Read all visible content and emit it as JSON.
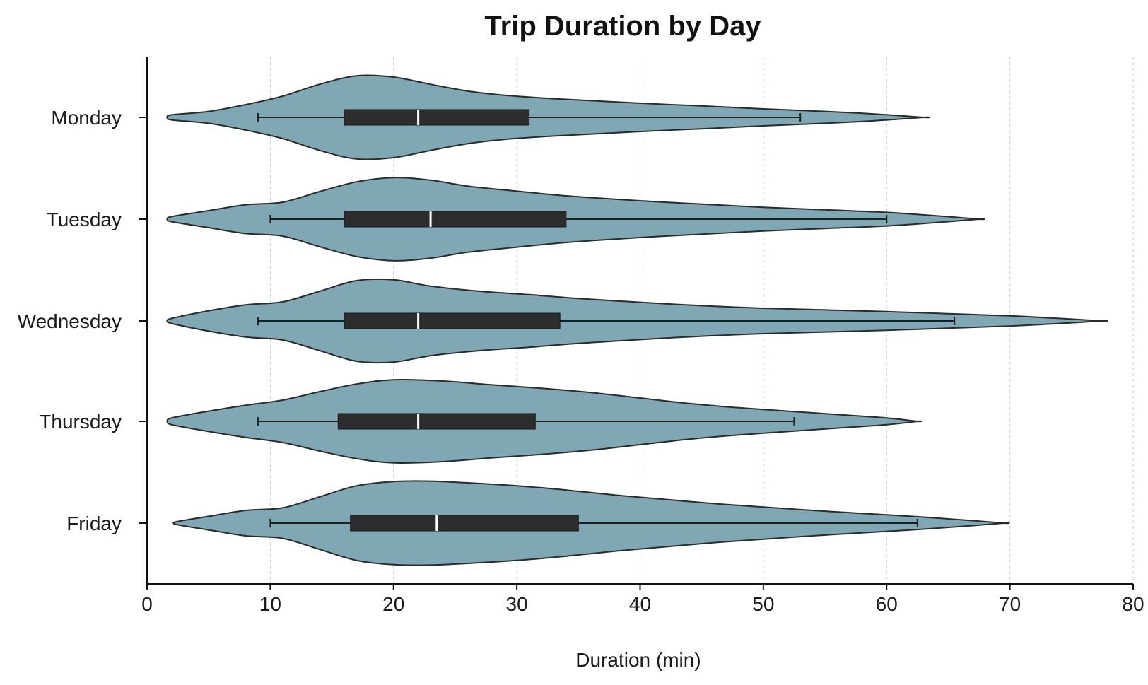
{
  "chart_data": {
    "type": "violin",
    "orientation": "horizontal",
    "title": "Trip Duration by Day",
    "xlabel": "Duration (min)",
    "ylabel": "",
    "xlim": [
      0,
      80
    ],
    "xticks": [
      0,
      10,
      20,
      30,
      40,
      50,
      60,
      70,
      80
    ],
    "grid": "vertical-dashed",
    "colors": {
      "violin_fill": "#7fa8b4",
      "violin_edge": "#2b2b2b",
      "box": "#2d2d2d",
      "median": "#ffffff"
    },
    "categories": [
      "Monday",
      "Tuesday",
      "Wednesday",
      "Thursday",
      "Friday"
    ],
    "series": [
      {
        "category": "Monday",
        "whisker_low": 9,
        "q1": 16,
        "median": 22,
        "q3": 31,
        "whisker_high": 53,
        "range": [
          2,
          63
        ],
        "density": [
          [
            2,
            0.06
          ],
          [
            5,
            0.14
          ],
          [
            8,
            0.3
          ],
          [
            11,
            0.5
          ],
          [
            14,
            0.78
          ],
          [
            17,
            0.98
          ],
          [
            20,
            0.95
          ],
          [
            23,
            0.78
          ],
          [
            26,
            0.62
          ],
          [
            29,
            0.52
          ],
          [
            33,
            0.44
          ],
          [
            37,
            0.38
          ],
          [
            41,
            0.32
          ],
          [
            45,
            0.27
          ],
          [
            50,
            0.2
          ],
          [
            55,
            0.14
          ],
          [
            59,
            0.08
          ],
          [
            63,
            0.0
          ]
        ]
      },
      {
        "category": "Tuesday",
        "whisker_low": 10,
        "q1": 16,
        "median": 23,
        "q3": 34,
        "whisker_high": 60,
        "range": [
          2,
          67.5
        ],
        "density": [
          [
            2,
            0.06
          ],
          [
            5,
            0.2
          ],
          [
            8,
            0.34
          ],
          [
            11,
            0.4
          ],
          [
            14,
            0.65
          ],
          [
            17,
            0.88
          ],
          [
            20,
            0.98
          ],
          [
            23,
            0.92
          ],
          [
            26,
            0.78
          ],
          [
            30,
            0.66
          ],
          [
            34,
            0.55
          ],
          [
            38,
            0.47
          ],
          [
            42,
            0.4
          ],
          [
            46,
            0.34
          ],
          [
            50,
            0.28
          ],
          [
            55,
            0.22
          ],
          [
            60,
            0.16
          ],
          [
            64,
            0.08
          ],
          [
            67.5,
            0.0
          ]
        ]
      },
      {
        "category": "Wednesday",
        "whisker_low": 9,
        "q1": 16,
        "median": 22,
        "q3": 33.5,
        "whisker_high": 65.5,
        "range": [
          2,
          77.5
        ],
        "density": [
          [
            2,
            0.06
          ],
          [
            5,
            0.24
          ],
          [
            8,
            0.38
          ],
          [
            11,
            0.45
          ],
          [
            14,
            0.7
          ],
          [
            17,
            0.95
          ],
          [
            20,
            0.97
          ],
          [
            23,
            0.82
          ],
          [
            27,
            0.7
          ],
          [
            31,
            0.62
          ],
          [
            35,
            0.53
          ],
          [
            40,
            0.44
          ],
          [
            45,
            0.36
          ],
          [
            50,
            0.3
          ],
          [
            55,
            0.26
          ],
          [
            60,
            0.22
          ],
          [
            65,
            0.17
          ],
          [
            70,
            0.12
          ],
          [
            74,
            0.06
          ],
          [
            77.5,
            0.0
          ]
        ]
      },
      {
        "category": "Thursday",
        "whisker_low": 9,
        "q1": 15.5,
        "median": 22,
        "q3": 31.5,
        "whisker_high": 52.5,
        "range": [
          2,
          62.5
        ],
        "density": [
          [
            2,
            0.08
          ],
          [
            5,
            0.24
          ],
          [
            8,
            0.38
          ],
          [
            11,
            0.5
          ],
          [
            14,
            0.7
          ],
          [
            17,
            0.88
          ],
          [
            20,
            0.98
          ],
          [
            24,
            0.95
          ],
          [
            28,
            0.86
          ],
          [
            32,
            0.78
          ],
          [
            36,
            0.68
          ],
          [
            40,
            0.55
          ],
          [
            44,
            0.42
          ],
          [
            48,
            0.32
          ],
          [
            52,
            0.24
          ],
          [
            56,
            0.16
          ],
          [
            60,
            0.08
          ],
          [
            62.5,
            0.0
          ]
        ]
      },
      {
        "category": "Friday",
        "whisker_low": 10,
        "q1": 16.5,
        "median": 23.5,
        "q3": 35,
        "whisker_high": 62.5,
        "range": [
          2.5,
          69.5
        ],
        "density": [
          [
            2.5,
            0.04
          ],
          [
            5,
            0.16
          ],
          [
            8,
            0.3
          ],
          [
            11,
            0.36
          ],
          [
            14,
            0.62
          ],
          [
            17,
            0.88
          ],
          [
            20,
            0.98
          ],
          [
            23,
            0.99
          ],
          [
            26,
            0.95
          ],
          [
            30,
            0.88
          ],
          [
            34,
            0.78
          ],
          [
            38,
            0.66
          ],
          [
            42,
            0.56
          ],
          [
            46,
            0.46
          ],
          [
            50,
            0.38
          ],
          [
            54,
            0.3
          ],
          [
            58,
            0.23
          ],
          [
            62,
            0.16
          ],
          [
            66,
            0.08
          ],
          [
            69.5,
            0.0
          ]
        ]
      }
    ]
  }
}
